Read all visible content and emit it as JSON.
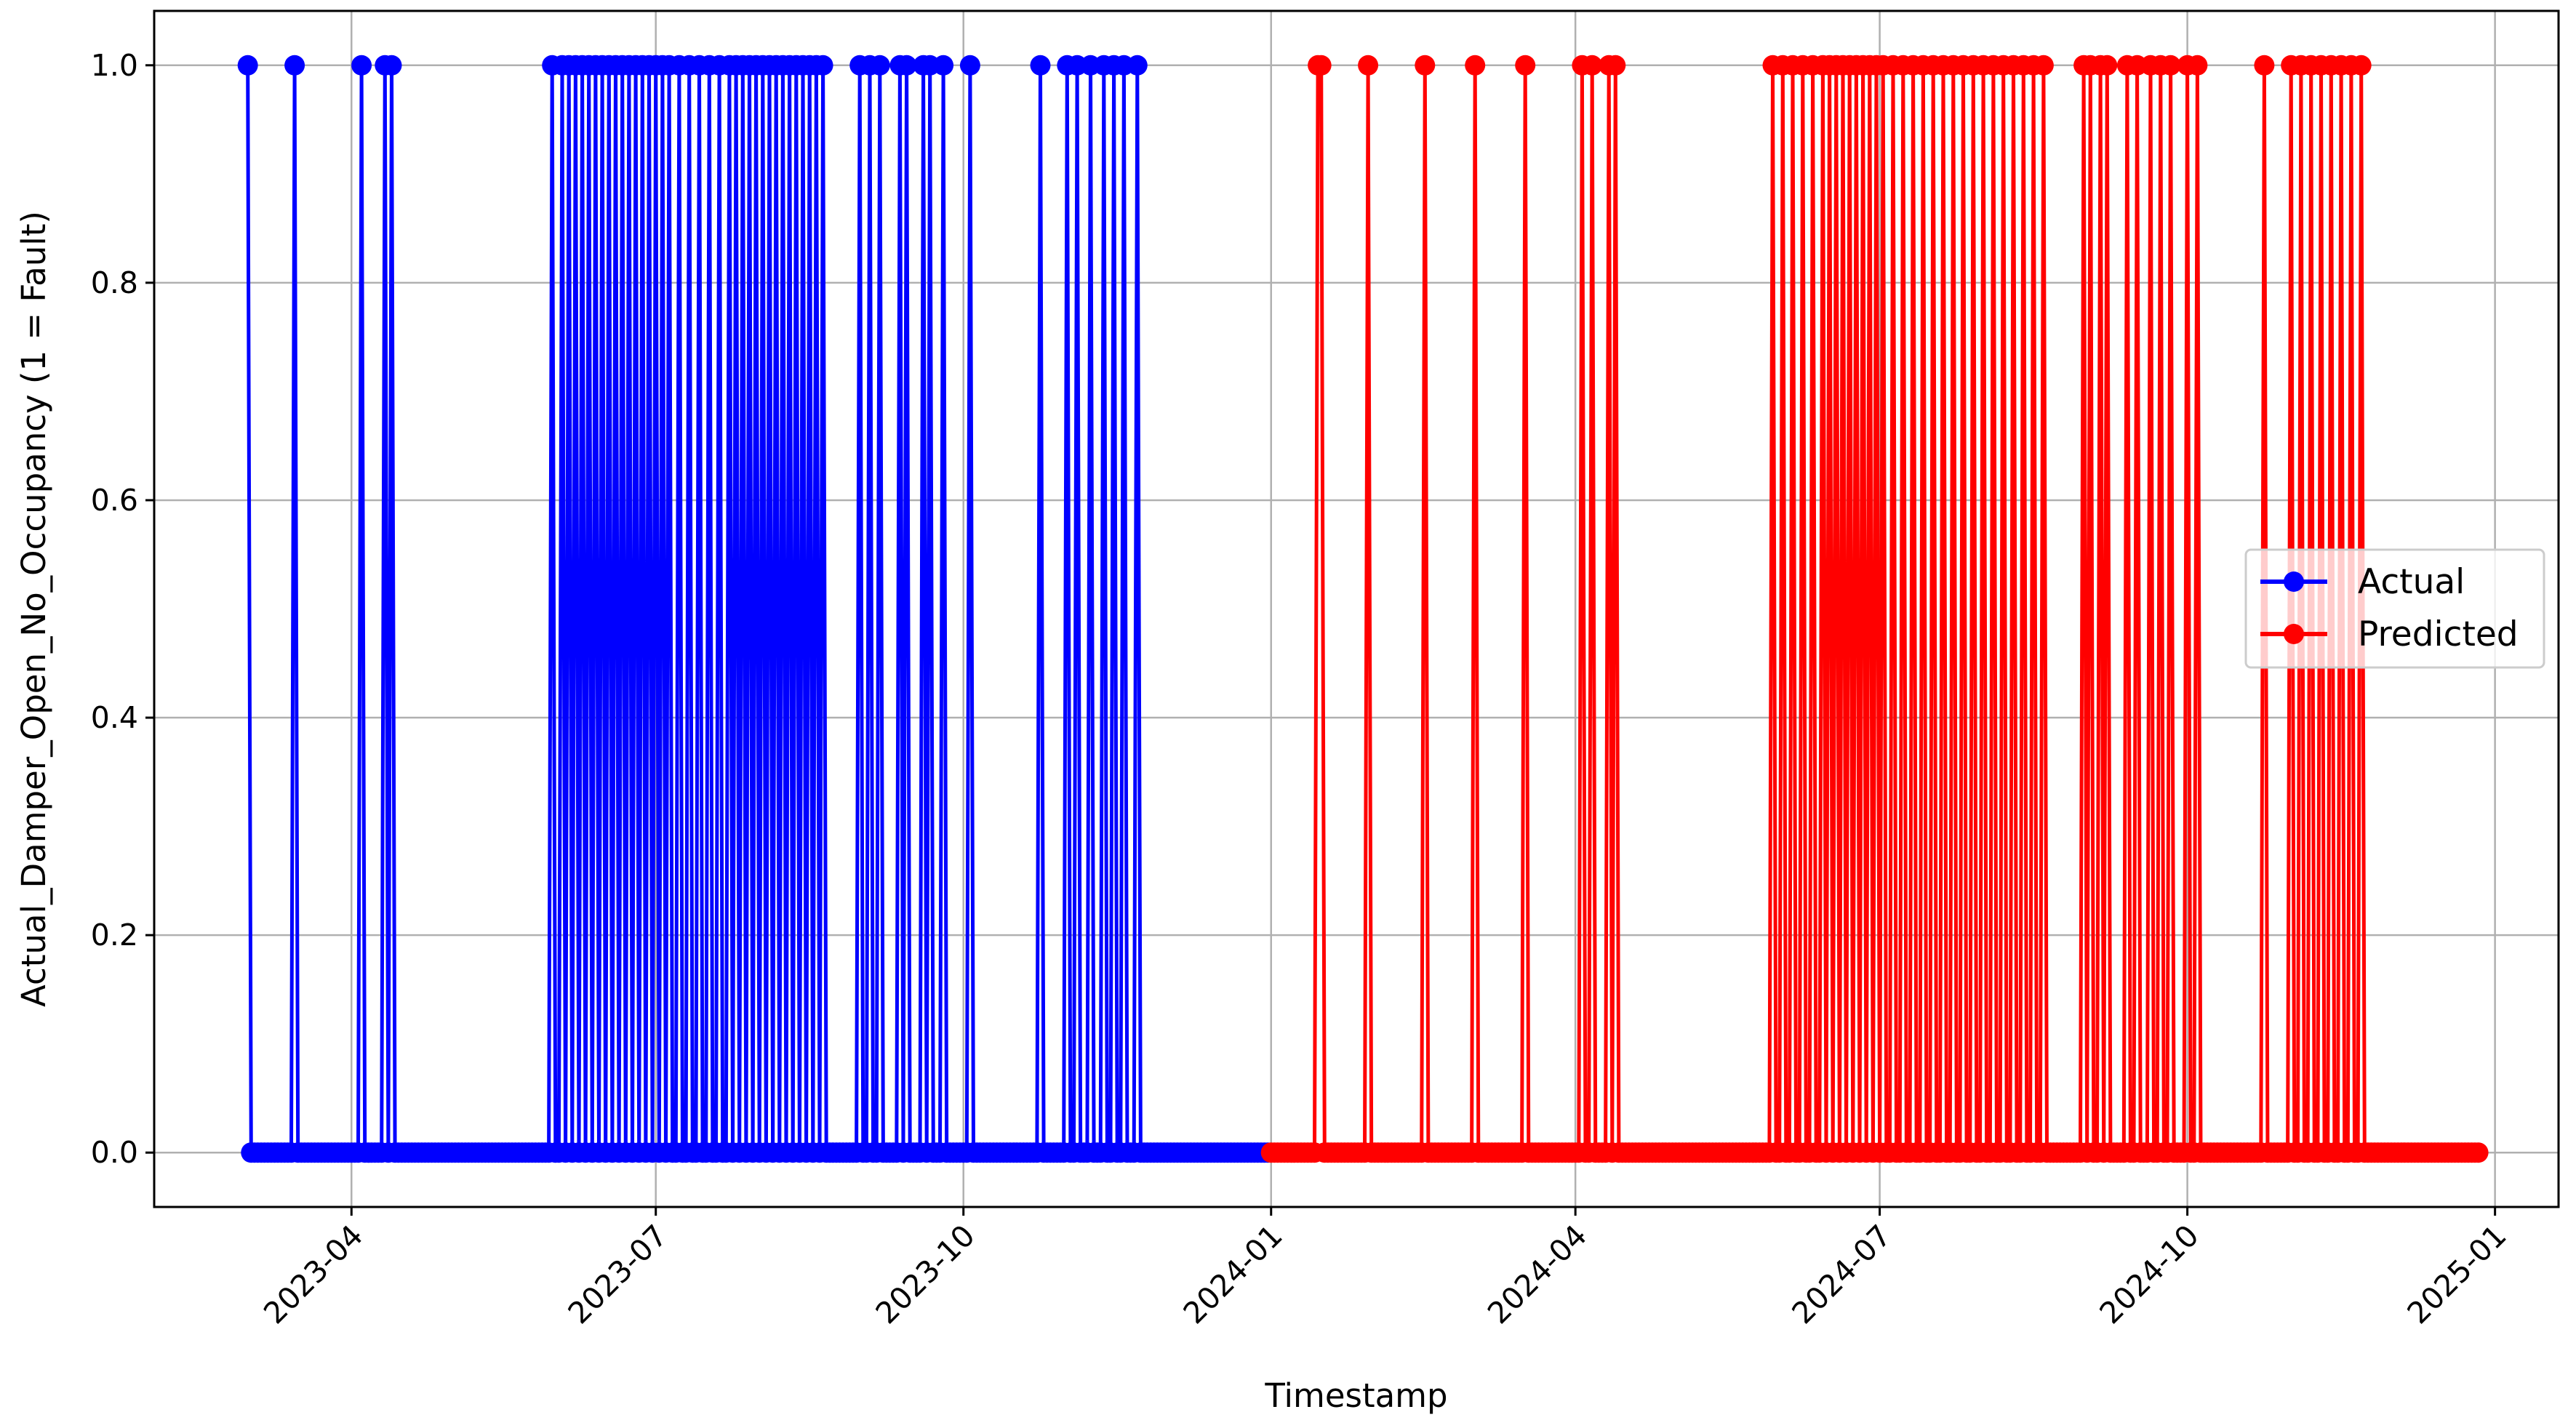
{
  "chart_data": {
    "type": "line",
    "title": "",
    "xlabel": "Timestamp",
    "ylabel": "Actual_Damper_Open_No_Occupancy (1 = Fault)",
    "xlim": [
      "2023-02-01",
      "2025-01-20"
    ],
    "ylim": [
      -0.05,
      1.05
    ],
    "grid": true,
    "legend_position": "center-right",
    "x_ticks": [
      {
        "value": "2023-04-01",
        "label": "2023-04"
      },
      {
        "value": "2023-07-01",
        "label": "2023-07"
      },
      {
        "value": "2023-10-01",
        "label": "2023-10"
      },
      {
        "value": "2024-01-01",
        "label": "2024-01"
      },
      {
        "value": "2024-04-01",
        "label": "2024-04"
      },
      {
        "value": "2024-07-01",
        "label": "2024-07"
      },
      {
        "value": "2024-10-01",
        "label": "2024-10"
      },
      {
        "value": "2025-01-01",
        "label": "2025-01"
      }
    ],
    "y_ticks": [
      {
        "value": 0.0,
        "label": "0.0"
      },
      {
        "value": 0.2,
        "label": "0.2"
      },
      {
        "value": 0.4,
        "label": "0.4"
      },
      {
        "value": 0.6,
        "label": "0.6"
      },
      {
        "value": 0.8,
        "label": "0.8"
      },
      {
        "value": 1.0,
        "label": "1.0"
      }
    ],
    "series": [
      {
        "name": "Actual",
        "color": "#0000ff",
        "marker": "circle",
        "x_start": "2023-03-01",
        "x_end": "2023-12-31",
        "baseline": 0,
        "fault_dates": [
          "2023-03-01",
          "2023-03-15",
          "2023-04-04",
          "2023-04-11",
          "2023-04-13",
          "2023-05-31",
          "2023-06-03",
          "2023-06-05",
          "2023-06-07",
          "2023-06-09",
          "2023-06-11",
          "2023-06-13",
          "2023-06-15",
          "2023-06-17",
          "2023-06-19",
          "2023-06-21",
          "2023-06-23",
          "2023-06-25",
          "2023-06-27",
          "2023-06-29",
          "2023-07-01",
          "2023-07-03",
          "2023-07-05",
          "2023-07-08",
          "2023-07-11",
          "2023-07-14",
          "2023-07-17",
          "2023-07-20",
          "2023-07-23",
          "2023-07-25",
          "2023-07-27",
          "2023-07-29",
          "2023-07-31",
          "2023-08-02",
          "2023-08-04",
          "2023-08-06",
          "2023-08-08",
          "2023-08-10",
          "2023-08-12",
          "2023-08-14",
          "2023-08-16",
          "2023-08-18",
          "2023-08-20",
          "2023-08-31",
          "2023-09-03",
          "2023-09-06",
          "2023-09-12",
          "2023-09-14",
          "2023-09-19",
          "2023-09-21",
          "2023-09-25",
          "2023-10-03",
          "2023-10-24",
          "2023-11-01",
          "2023-11-04",
          "2023-11-08",
          "2023-11-12",
          "2023-11-15",
          "2023-11-18",
          "2023-11-22"
        ]
      },
      {
        "name": "Predicted",
        "color": "#ff0000",
        "marker": "circle",
        "x_start": "2024-01-01",
        "x_end": "2024-12-27",
        "baseline": 0,
        "fault_dates": [
          "2024-01-15",
          "2024-01-16",
          "2024-01-30",
          "2024-02-16",
          "2024-03-02",
          "2024-03-17",
          "2024-04-03",
          "2024-04-06",
          "2024-04-11",
          "2024-04-13",
          "2024-05-30",
          "2024-06-02",
          "2024-06-05",
          "2024-06-08",
          "2024-06-11",
          "2024-06-14",
          "2024-06-16",
          "2024-06-18",
          "2024-06-20",
          "2024-06-22",
          "2024-06-24",
          "2024-06-26",
          "2024-06-28",
          "2024-06-30",
          "2024-07-02",
          "2024-07-05",
          "2024-07-08",
          "2024-07-11",
          "2024-07-14",
          "2024-07-17",
          "2024-07-20",
          "2024-07-23",
          "2024-07-26",
          "2024-07-29",
          "2024-08-01",
          "2024-08-04",
          "2024-08-07",
          "2024-08-10",
          "2024-08-13",
          "2024-08-16",
          "2024-08-19",
          "2024-08-31",
          "2024-09-02",
          "2024-09-05",
          "2024-09-07",
          "2024-09-13",
          "2024-09-16",
          "2024-09-20",
          "2024-09-23",
          "2024-09-26",
          "2024-10-01",
          "2024-10-04",
          "2024-10-24",
          "2024-11-01",
          "2024-11-04",
          "2024-11-07",
          "2024-11-10",
          "2024-11-13",
          "2024-11-16",
          "2024-11-19",
          "2024-11-22"
        ]
      }
    ]
  }
}
